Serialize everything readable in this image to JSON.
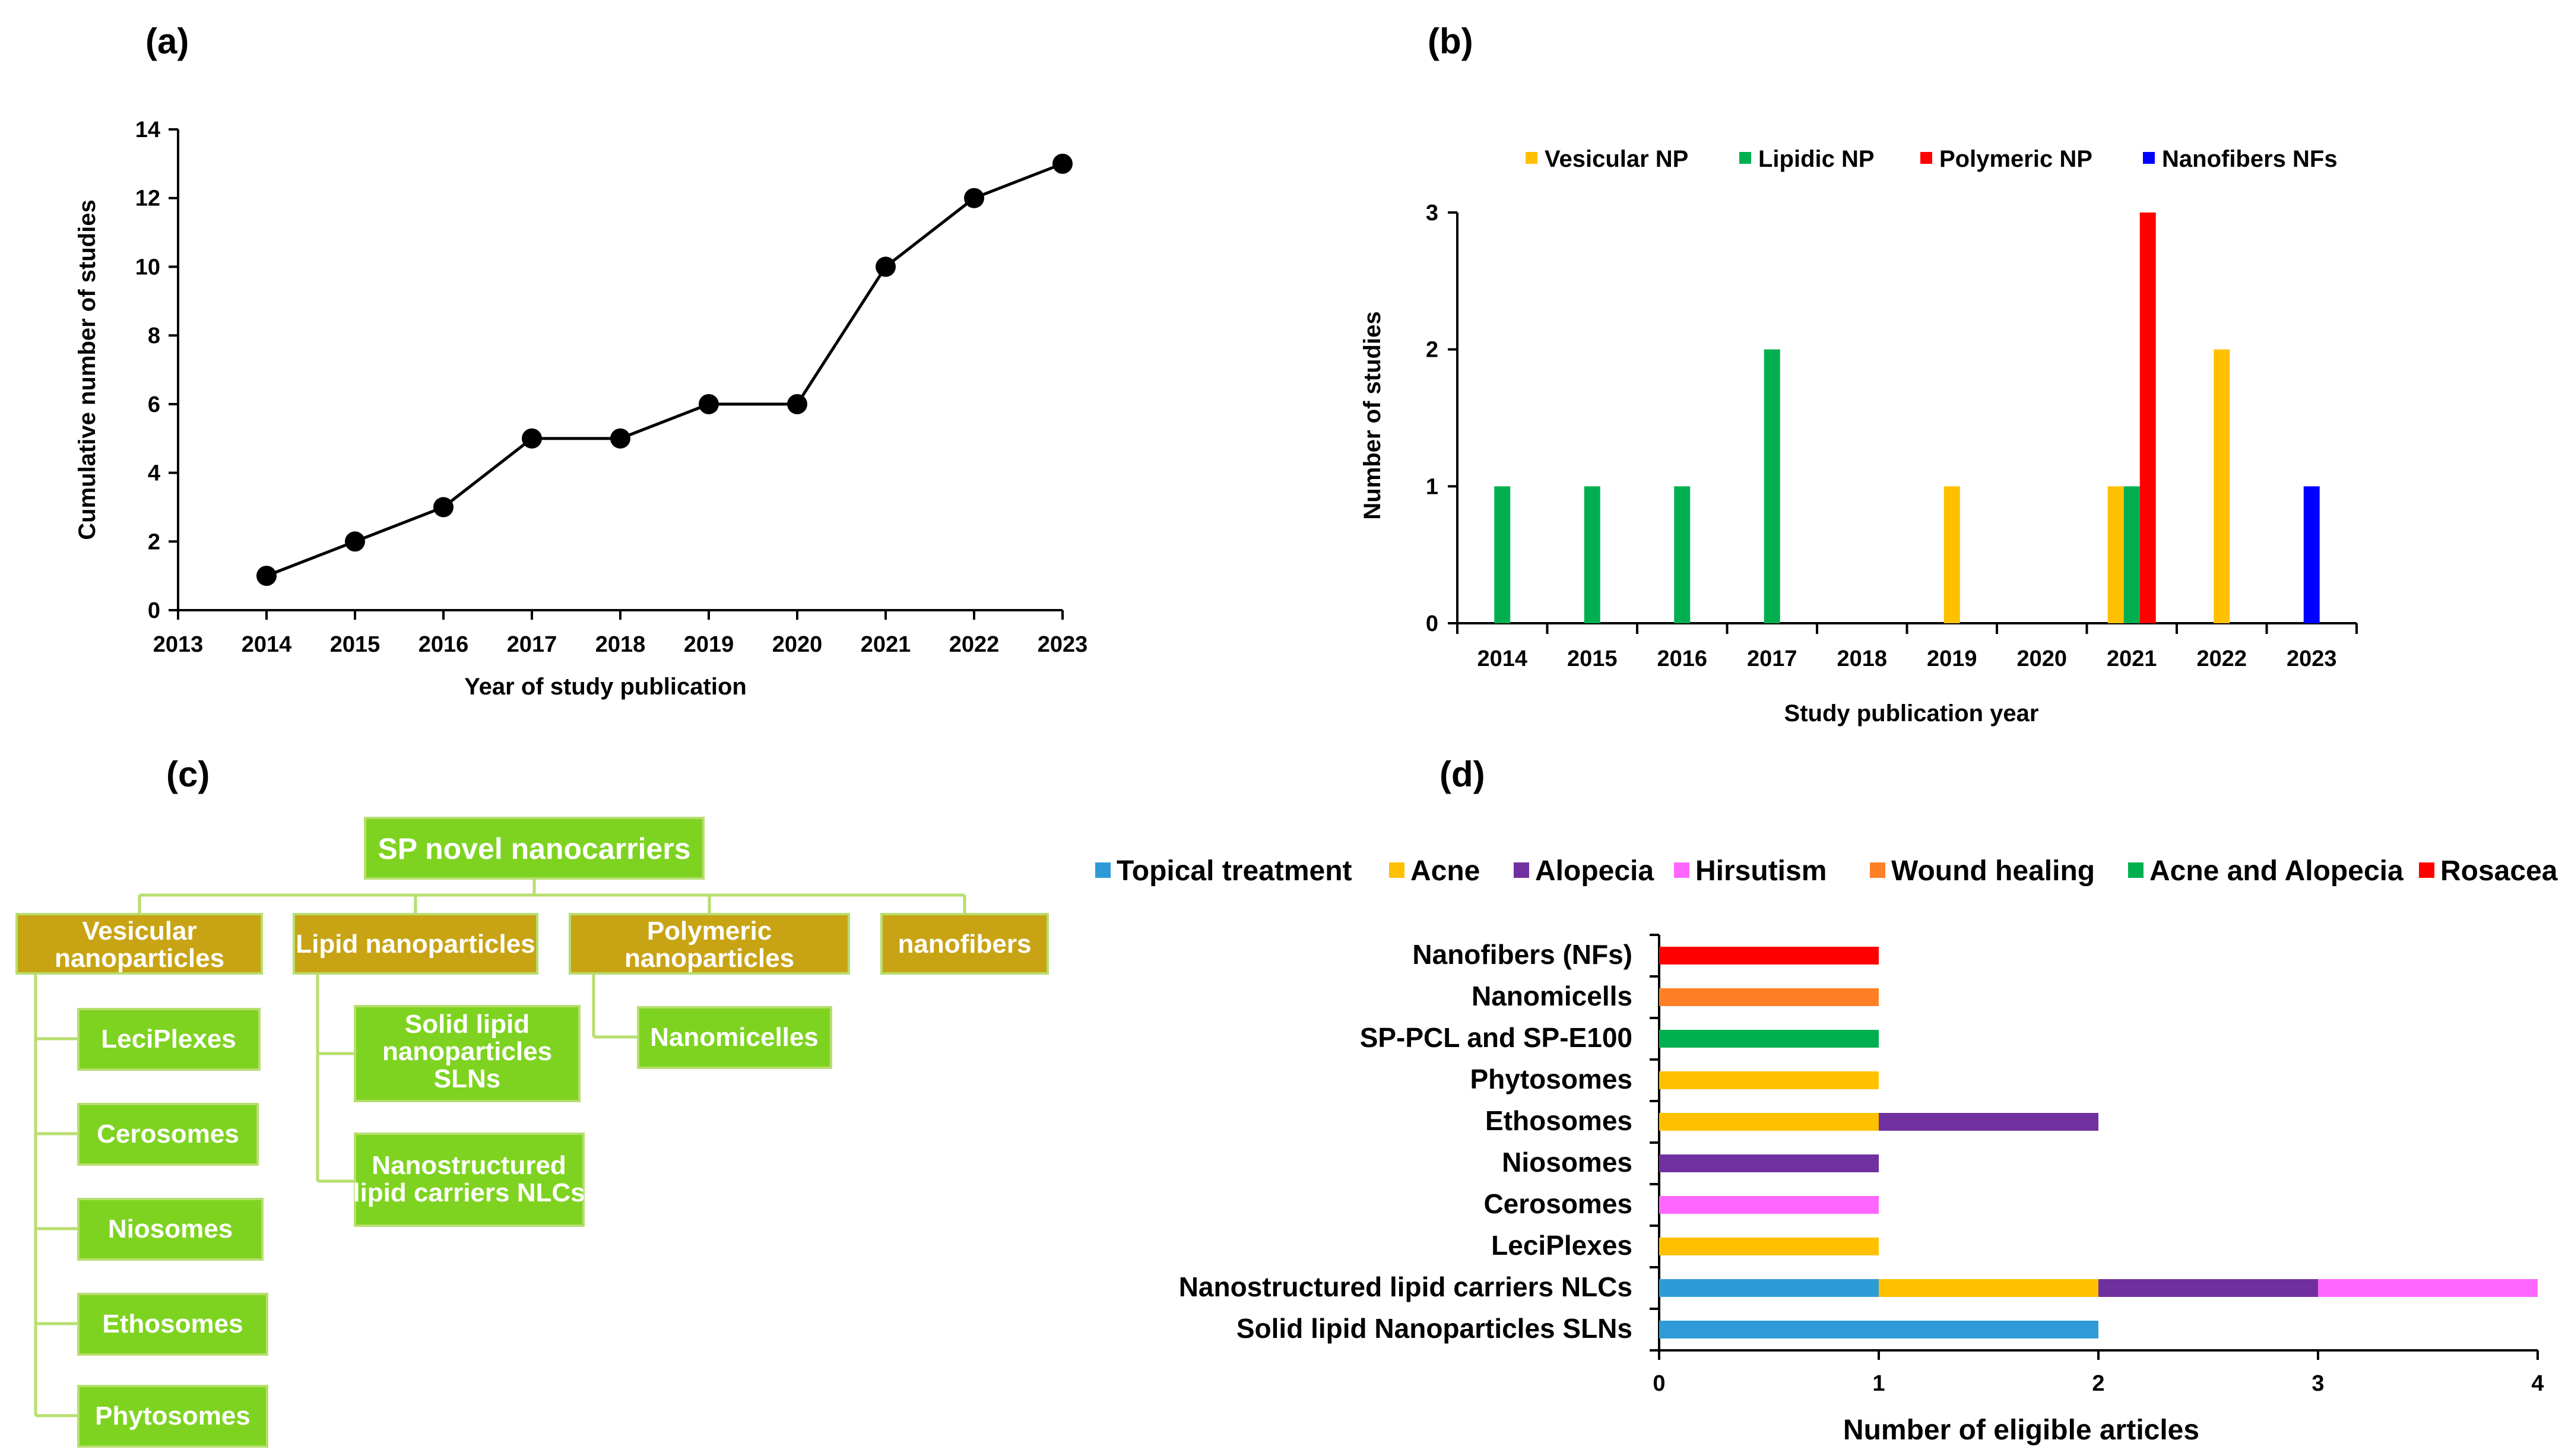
{
  "panels": {
    "a": "(a)",
    "b": "(b)",
    "c": "(c)",
    "d": "(d)"
  },
  "chart_data": [
    {
      "id": "a",
      "type": "line",
      "title": "",
      "xlabel": "Year of study publication",
      "ylabel": "Cumulative number of studies",
      "x_ticks": [
        "2013",
        "2014",
        "2015",
        "2016",
        "2017",
        "2018",
        "2019",
        "2020",
        "2021",
        "2022",
        "2023"
      ],
      "y_ticks": [
        "0",
        "2",
        "4",
        "6",
        "8",
        "10",
        "12",
        "14"
      ],
      "xlim": [
        2013,
        2023
      ],
      "ylim": [
        0,
        14
      ],
      "series": [
        {
          "name": "Cumulative",
          "color": "#000000",
          "x": [
            2014,
            2015,
            2016,
            2017,
            2018,
            2019,
            2020,
            2021,
            2022,
            2023
          ],
          "y": [
            1,
            2,
            3,
            5,
            5,
            6,
            6,
            10,
            12,
            13
          ]
        }
      ]
    },
    {
      "id": "b",
      "type": "bar",
      "xlabel": "Study publication year",
      "ylabel": "Number of studies",
      "categories": [
        "2014",
        "2015",
        "2016",
        "2017",
        "2018",
        "2019",
        "2020",
        "2021",
        "2022",
        "2023"
      ],
      "y_ticks": [
        "0",
        "1",
        "2",
        "3"
      ],
      "ylim": [
        0,
        3
      ],
      "legend_position": "top",
      "series": [
        {
          "name": "Vesicular NP",
          "color": "#FFC000",
          "values": [
            0,
            0,
            0,
            0,
            0,
            1,
            0,
            1,
            2,
            0
          ]
        },
        {
          "name": "Lipidic NP",
          "color": "#00B050",
          "values": [
            1,
            1,
            1,
            2,
            0,
            0,
            0,
            1,
            0,
            0
          ]
        },
        {
          "name": "Polymeric NP",
          "color": "#FF0000",
          "values": [
            0,
            0,
            0,
            0,
            0,
            0,
            0,
            3,
            0,
            0
          ]
        },
        {
          "name": "Nanofibers NFs",
          "color": "#0000FF",
          "values": [
            0,
            0,
            0,
            0,
            0,
            0,
            0,
            0,
            0,
            1
          ]
        }
      ]
    },
    {
      "id": "d",
      "type": "bar",
      "orientation": "horizontal",
      "stacked": true,
      "xlabel": "Number of eligible articles",
      "ylabel": "",
      "x_ticks": [
        "0",
        "1",
        "2",
        "3",
        "4"
      ],
      "xlim": [
        0,
        4
      ],
      "legend_position": "top",
      "categories": [
        "Nanofibers (NFs)",
        "Nanomicells",
        "SP-PCL and SP-E100",
        "Phytosomes",
        "Ethosomes",
        "Niosomes",
        "Cerosomes",
        "LeciPlexes",
        "Nanostructured lipid carriers NLCs",
        "Solid lipid Nanoparticles SLNs"
      ],
      "series": [
        {
          "name": "Topical treatment",
          "color": "#2E9BD6",
          "values": [
            0,
            0,
            0,
            0,
            0,
            0,
            0,
            0,
            1,
            2
          ]
        },
        {
          "name": "Acne",
          "color": "#FFC000",
          "values": [
            0,
            0,
            0,
            1,
            1,
            0,
            0,
            1,
            1,
            0
          ]
        },
        {
          "name": "Alopecia",
          "color": "#7030A0",
          "values": [
            0,
            0,
            0,
            0,
            1,
            1,
            0,
            0,
            1,
            0
          ]
        },
        {
          "name": "Hirsutism",
          "color": "#FF66FF",
          "values": [
            0,
            0,
            0,
            0,
            0,
            0,
            1,
            0,
            1,
            0
          ]
        },
        {
          "name": "Wound healing",
          "color": "#FF7F27",
          "values": [
            0,
            1,
            0,
            0,
            0,
            0,
            0,
            0,
            0,
            0
          ]
        },
        {
          "name": "Acne and Alopecia",
          "color": "#00B050",
          "values": [
            0,
            0,
            1,
            0,
            0,
            0,
            0,
            0,
            0,
            0
          ]
        },
        {
          "name": "Rosacea",
          "color": "#FF0000",
          "values": [
            1,
            0,
            0,
            0,
            0,
            0,
            0,
            0,
            0,
            0
          ]
        }
      ]
    }
  ],
  "diagram_c": {
    "root": "SP novel nanocarriers",
    "branches": {
      "vesicular": "Vesicular nanoparticles",
      "lipid": "Lipid nanoparticles",
      "polymeric": "Polymeric nanoparticles",
      "nanofibers": "nanofibers"
    },
    "vesicular_items": [
      "LeciPlexes",
      "Cerosomes",
      "Niosomes",
      "Ethosomes",
      "Phytosomes"
    ],
    "lipid_items": [
      "Solid lipid nanoparticles SLNs",
      "Nanostructured lipid carriers NLCs"
    ],
    "polymeric_items": [
      "Nanomicelles"
    ],
    "colors": {
      "green": "#7ED321",
      "gold": "#C8A415",
      "line": "#B7DE6E"
    }
  }
}
